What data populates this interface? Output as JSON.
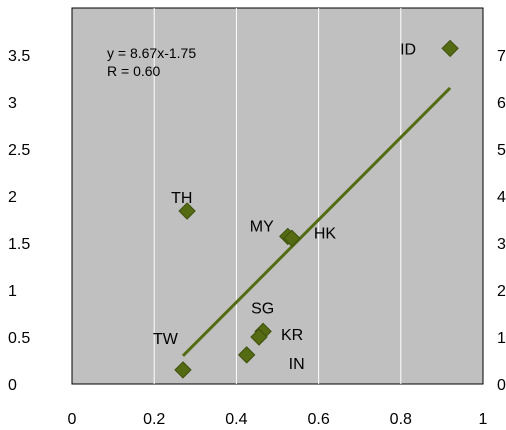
{
  "chart_data": {
    "type": "scatter",
    "equation": "y = 8.67x-1.75",
    "r_value": "R = 0.60",
    "xlim": [
      0,
      1
    ],
    "ylim": [
      0,
      4
    ],
    "x_ticks": [
      "0",
      "0.2",
      "0.4",
      "0.6",
      "0.8",
      "1"
    ],
    "y_ticks_left": [
      "0",
      "0.5",
      "1",
      "1.5",
      "2",
      "2.5",
      "3",
      "3.5"
    ],
    "y_ticks_right": [
      "0",
      "1",
      "2",
      "3",
      "4",
      "5",
      "6",
      "7"
    ],
    "points": [
      {
        "label": "ID",
        "x": 0.92,
        "y": 3.57
      },
      {
        "label": "TH",
        "x": 0.28,
        "y": 1.84
      },
      {
        "label": "MY",
        "x": 0.525,
        "y": 1.57
      },
      {
        "label": "HK",
        "x": 0.535,
        "y": 1.55
      },
      {
        "label": "SG",
        "x": 0.465,
        "y": 0.56
      },
      {
        "label": "KR",
        "x": 0.455,
        "y": 0.5
      },
      {
        "label": "IN",
        "x": 0.425,
        "y": 0.31
      },
      {
        "label": "TW",
        "x": 0.27,
        "y": 0.15
      }
    ],
    "trendline": {
      "x": [
        0.27,
        0.92
      ],
      "y": [
        0.3,
        3.15
      ]
    },
    "colors": {
      "plot_bg": "#c0c0c0",
      "marker": "#556b13",
      "line": "#556b13",
      "grid": "#ffffff"
    }
  }
}
